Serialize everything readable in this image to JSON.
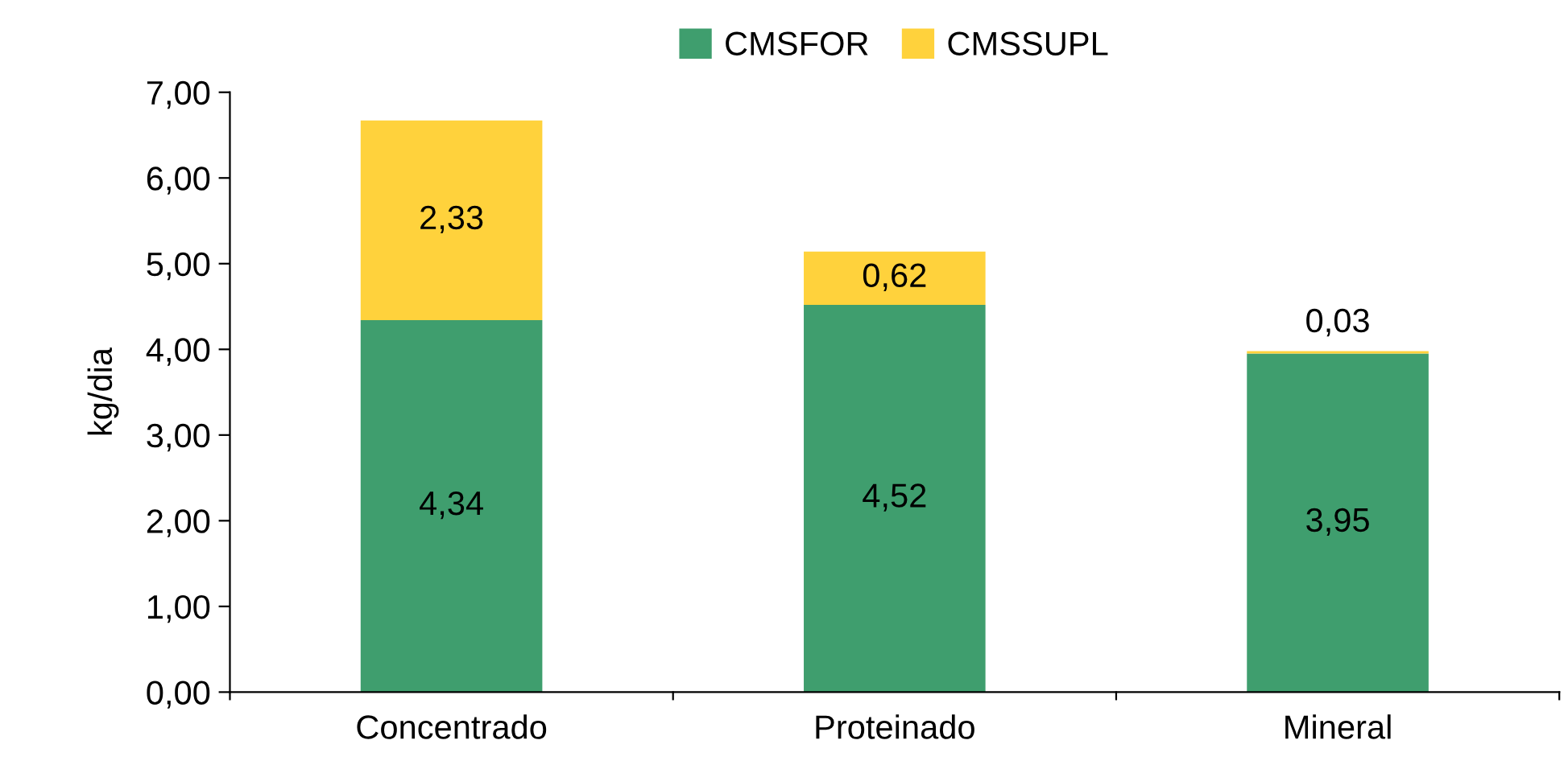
{
  "chart_data": {
    "type": "bar",
    "stacked": true,
    "ylabel": "kg/dia",
    "categories": [
      "Concentrado",
      "Proteinado",
      "Mineral"
    ],
    "series": [
      {
        "name": "CMSFOR",
        "color": "#3f9e6e",
        "values": [
          4.34,
          4.52,
          3.95
        ],
        "value_labels": [
          "4,34",
          "4,52",
          "3,95"
        ]
      },
      {
        "name": "CMSSUPL",
        "color": "#ffd23c",
        "values": [
          2.33,
          0.62,
          0.03
        ],
        "value_labels": [
          "2,33",
          "0,62",
          "0,03"
        ]
      }
    ],
    "ylim": [
      0,
      7
    ],
    "yticks": [
      {
        "value": 0,
        "label": "0,00"
      },
      {
        "value": 1,
        "label": "1,00"
      },
      {
        "value": 2,
        "label": "2,00"
      },
      {
        "value": 3,
        "label": "3,00"
      },
      {
        "value": 4,
        "label": "4,00"
      },
      {
        "value": 5,
        "label": "5,00"
      },
      {
        "value": 6,
        "label": "6,00"
      },
      {
        "value": 7,
        "label": "7,00"
      }
    ],
    "legend": "top",
    "grid": false
  }
}
